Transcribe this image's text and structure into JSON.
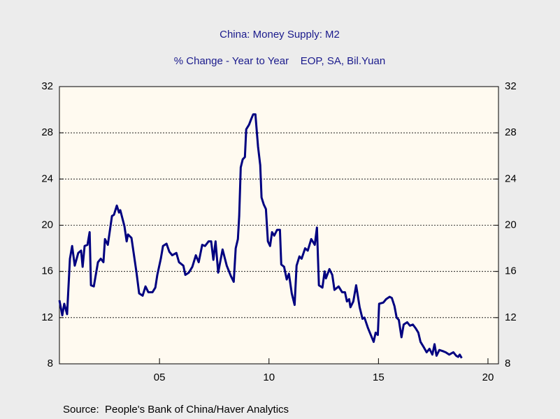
{
  "chart_data": {
    "type": "line",
    "title": "China: Money Supply: M2",
    "subtitle": "% Change - Year to Year    EOP, SA, Bil.Yuan",
    "source": "Source:  People's Bank of China/Haver Analytics",
    "xlim": [
      2000.43,
      2020.48
    ],
    "xticks": [
      {
        "value": 2005,
        "label": "05"
      },
      {
        "value": 2010,
        "label": "10"
      },
      {
        "value": 2015,
        "label": "15"
      },
      {
        "value": 2020,
        "label": "20"
      }
    ],
    "ylim": [
      8,
      32
    ],
    "yticks": [
      8,
      12,
      16,
      20,
      24,
      28,
      32
    ],
    "grid": true,
    "x": [
      2000.43,
      2000.56,
      2000.65,
      2000.78,
      2000.91,
      2001.01,
      2001.13,
      2001.29,
      2001.42,
      2001.49,
      2001.58,
      2001.71,
      2001.81,
      2001.87,
      2002.0,
      2002.19,
      2002.32,
      2002.44,
      2002.51,
      2002.64,
      2002.83,
      2002.92,
      2003.05,
      2003.15,
      2003.21,
      2003.4,
      2003.5,
      2003.56,
      2003.72,
      2003.95,
      2004.07,
      2004.23,
      2004.36,
      2004.49,
      2004.68,
      2004.81,
      2004.9,
      2005.06,
      2005.16,
      2005.32,
      2005.45,
      2005.58,
      2005.77,
      2005.89,
      2006.09,
      2006.18,
      2006.34,
      2006.5,
      2006.66,
      2006.79,
      2006.95,
      2007.08,
      2007.24,
      2007.36,
      2007.46,
      2007.56,
      2007.68,
      2007.88,
      2008.07,
      2008.26,
      2008.39,
      2008.48,
      2008.58,
      2008.64,
      2008.71,
      2008.8,
      2008.9,
      2008.96,
      2009.09,
      2009.19,
      2009.28,
      2009.38,
      2009.5,
      2009.6,
      2009.66,
      2009.76,
      2009.86,
      2009.95,
      2010.05,
      2010.14,
      2010.24,
      2010.37,
      2010.5,
      2010.56,
      2010.69,
      2010.81,
      2010.91,
      2011.04,
      2011.17,
      2011.26,
      2011.39,
      2011.49,
      2011.65,
      2011.77,
      2011.93,
      2012.09,
      2012.19,
      2012.28,
      2012.44,
      2012.54,
      2012.6,
      2012.76,
      2012.89,
      2012.99,
      2013.18,
      2013.34,
      2013.47,
      2013.56,
      2013.66,
      2013.72,
      2013.85,
      2013.98,
      2014.14,
      2014.27,
      2014.36,
      2014.52,
      2014.65,
      2014.78,
      2014.87,
      2014.97,
      2015.03,
      2015.22,
      2015.35,
      2015.51,
      2015.61,
      2015.73,
      2015.83,
      2015.93,
      2016.05,
      2016.15,
      2016.31,
      2016.44,
      2016.57,
      2016.69,
      2016.82,
      2016.92,
      2017.08,
      2017.2,
      2017.33,
      2017.46,
      2017.56,
      2017.65,
      2017.78,
      2017.94,
      2018.07,
      2018.23,
      2018.42,
      2018.55,
      2018.64,
      2018.71,
      2018.8
    ],
    "series": [
      {
        "name": "M2",
        "color": "#000080",
        "values": [
          13.5,
          12.2,
          13.2,
          12.3,
          17.1,
          18.2,
          16.5,
          17.6,
          17.8,
          16.4,
          18.2,
          18.3,
          19.4,
          14.8,
          14.7,
          16.8,
          17.1,
          16.8,
          18.8,
          18.3,
          20.8,
          20.9,
          21.7,
          21.1,
          21.3,
          19.9,
          18.6,
          19.2,
          18.9,
          15.9,
          14.1,
          13.9,
          14.7,
          14.2,
          14.2,
          14.6,
          15.7,
          17.1,
          18.2,
          18.4,
          17.7,
          17.4,
          17.6,
          16.8,
          16.5,
          15.7,
          15.9,
          16.4,
          17.4,
          16.8,
          18.3,
          18.2,
          18.6,
          18.6,
          17.0,
          18.6,
          15.9,
          17.9,
          16.5,
          15.6,
          15.1,
          18.0,
          18.8,
          20.8,
          25.0,
          25.7,
          25.9,
          28.3,
          28.7,
          29.2,
          29.6,
          29.6,
          26.8,
          25.2,
          22.4,
          21.8,
          21.4,
          18.6,
          18.2,
          19.4,
          19.1,
          19.6,
          19.6,
          16.6,
          16.4,
          15.3,
          15.8,
          14.1,
          13.1,
          16.5,
          17.3,
          17.1,
          18.0,
          17.8,
          18.8,
          18.3,
          19.8,
          14.8,
          14.6,
          16.0,
          15.4,
          16.2,
          15.7,
          14.4,
          14.7,
          14.2,
          14.2,
          13.4,
          13.6,
          12.9,
          13.4,
          14.8,
          12.9,
          11.9,
          12.0,
          11.1,
          10.5,
          9.9,
          10.7,
          10.5,
          13.2,
          13.3,
          13.6,
          13.8,
          13.7,
          13.0,
          12.0,
          11.8,
          10.3,
          11.4,
          11.6,
          11.3,
          11.4,
          11.1,
          10.7,
          9.9,
          9.4,
          9.0,
          9.3,
          8.8,
          9.7,
          8.7,
          9.2,
          9.1,
          9.0,
          8.8,
          9.0,
          8.7,
          8.6,
          8.8,
          8.5
        ]
      }
    ]
  }
}
